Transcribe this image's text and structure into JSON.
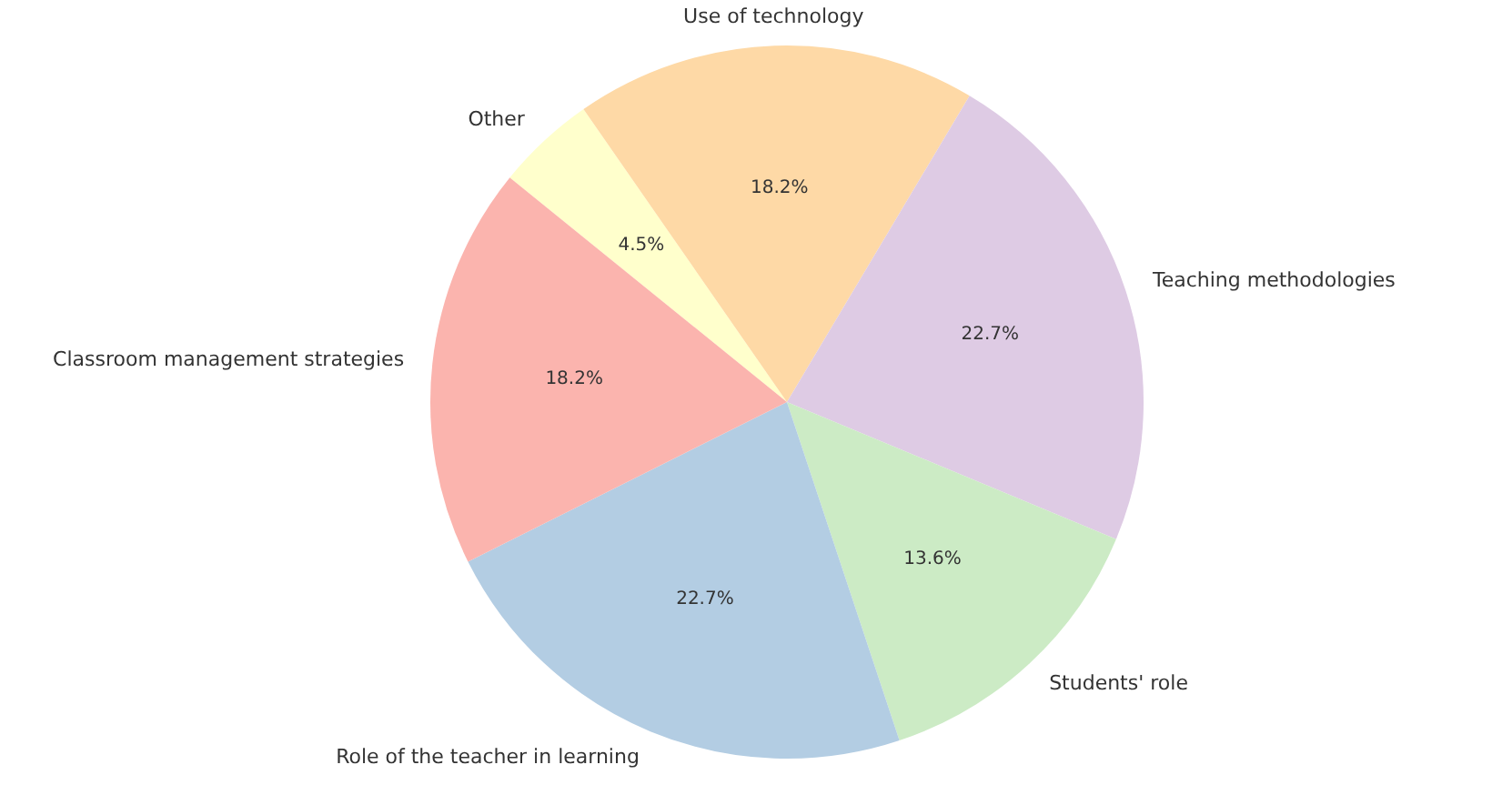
{
  "chart_data": {
    "type": "pie",
    "categories": [
      "Other",
      "Use of technology",
      "Teaching methodologies",
      "Students' role",
      "Role of the teacher in learning",
      "Classroom management strategies"
    ],
    "values": [
      4.5,
      18.2,
      22.7,
      13.6,
      22.7,
      18.2
    ],
    "colors": [
      "#ffffcc",
      "#fed9a6",
      "#decbe4",
      "#ccebc5",
      "#b3cde3",
      "#fbb4ae"
    ],
    "value_labels": [
      "4.5%",
      "18.2%",
      "22.7%",
      "13.6%",
      "22.7%",
      "18.2%"
    ],
    "legend": false
  }
}
